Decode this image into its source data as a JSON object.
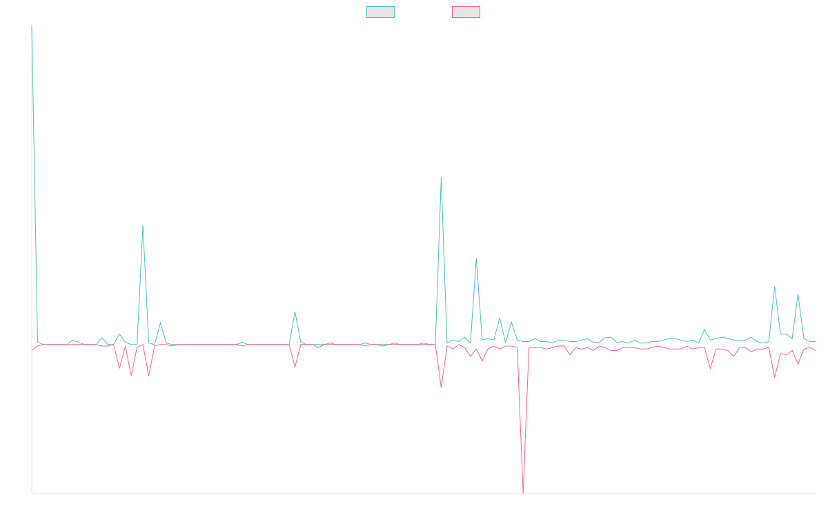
{
  "chart_data": {
    "type": "line",
    "x": [
      1,
      2,
      3,
      4,
      5,
      6,
      7,
      8,
      9,
      10,
      11,
      12,
      13,
      14,
      15,
      16,
      17,
      18,
      19,
      20,
      21,
      22,
      23,
      24,
      25,
      26,
      27,
      28,
      29,
      30,
      31,
      32,
      33,
      34,
      35,
      36,
      37,
      38,
      39,
      40,
      41,
      42,
      43,
      44,
      45,
      46,
      47,
      48,
      49,
      50,
      51,
      52,
      53,
      54,
      55,
      56,
      57,
      58,
      59,
      60,
      61,
      62,
      63,
      64,
      65,
      66,
      67,
      68,
      69,
      70,
      71,
      72,
      73,
      74,
      75,
      76,
      77,
      78,
      79,
      80,
      81,
      82,
      83,
      84,
      85,
      86,
      87,
      88,
      89,
      90,
      91,
      92,
      93,
      94,
      95,
      96,
      97,
      98,
      99,
      100,
      101,
      102,
      103,
      104,
      105,
      106,
      107,
      108,
      109,
      110,
      111,
      112,
      113,
      114,
      115,
      116,
      117,
      118,
      119,
      120,
      121,
      122,
      123,
      124,
      125,
      126,
      127,
      128,
      129,
      130,
      131,
      132,
      133,
      134,
      135
    ],
    "ylim": [
      -100,
      215
    ],
    "grid": false,
    "legend_position": "top-center",
    "series": [
      {
        "color": "#4bc0c0",
        "values": [
          214,
          1.5,
          0,
          0,
          0,
          0,
          0,
          3,
          1.5,
          0,
          0,
          0,
          4.5,
          0,
          0,
          7,
          1.5,
          0,
          0,
          80,
          1,
          0,
          14.5,
          1,
          0,
          0,
          0,
          0,
          0,
          0,
          0,
          0,
          0,
          0,
          0,
          0,
          1.5,
          0,
          0,
          0,
          0,
          0,
          0,
          0,
          0,
          22,
          1.5,
          0,
          0,
          0,
          0,
          1,
          0,
          0,
          0,
          0,
          0,
          1,
          0,
          0,
          0,
          0,
          1,
          0,
          0,
          0,
          0,
          1,
          0,
          0,
          112,
          1,
          3,
          2,
          5,
          1,
          58,
          3,
          4,
          3,
          18,
          1,
          15,
          3,
          2,
          2,
          4,
          2,
          2,
          1,
          3,
          3,
          2,
          2,
          3,
          4,
          1.5,
          1.5,
          4.5,
          5,
          1.5,
          2,
          1,
          3,
          1,
          1,
          2,
          2,
          3,
          4,
          4,
          3,
          2,
          3,
          1,
          10,
          3,
          4,
          5,
          4,
          3,
          3,
          3,
          5,
          2,
          1,
          2,
          39,
          7,
          7,
          4,
          34,
          4,
          2,
          2
        ]
      },
      {
        "color": "#ff6384",
        "values": [
          -4,
          -1,
          0,
          0,
          0,
          0,
          0,
          0,
          0,
          0,
          0,
          0,
          -1,
          -1,
          0,
          -16,
          -1,
          -21,
          -2,
          0,
          -21,
          -1,
          0,
          0,
          -1,
          0,
          0,
          0,
          0,
          0,
          0,
          0,
          0,
          0,
          0,
          0,
          -1,
          0,
          0,
          0,
          0,
          0,
          0,
          0,
          0,
          -15,
          0,
          0,
          0,
          -2,
          0,
          0,
          0,
          0,
          0,
          0,
          0,
          -1,
          0,
          0,
          -1,
          0,
          0,
          0,
          0,
          0,
          0,
          0,
          0,
          0,
          -29,
          -1,
          -3,
          0,
          -2,
          -8,
          -3,
          -11,
          -3,
          -1,
          -3,
          -1,
          -1,
          -2,
          -100,
          -2,
          -2,
          -2,
          -3,
          -2,
          -1,
          -1,
          -7,
          -2,
          -3,
          -2,
          -4,
          -1,
          -2,
          -4,
          -4,
          -2,
          -2,
          -2,
          -3,
          -3,
          -2,
          -1,
          -2,
          -3,
          -3,
          -3,
          -1,
          -3,
          -2,
          -2,
          -16,
          -3,
          -3,
          -4,
          -8,
          -2,
          -2,
          -5,
          -3,
          -3,
          -2,
          -22,
          -6,
          -7,
          -4,
          -13,
          -3,
          -2,
          -4
        ]
      }
    ]
  }
}
